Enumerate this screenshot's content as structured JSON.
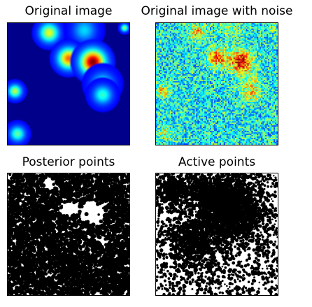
{
  "chart_data": [
    {
      "type": "heatmap",
      "title": "Original image",
      "colormap": "jet",
      "background_color": "#00008b",
      "grid": false,
      "axes_ticks": false,
      "sources": [
        {
          "x": 0.34,
          "y": 0.08,
          "amplitude": 0.55,
          "sigma": 0.05
        },
        {
          "x": 0.63,
          "y": 0.06,
          "amplitude": 0.25,
          "sigma": 0.06
        },
        {
          "x": 0.96,
          "y": 0.04,
          "amplitude": 0.45,
          "sigma": 0.02
        },
        {
          "x": 0.5,
          "y": 0.29,
          "amplitude": 0.75,
          "sigma": 0.055
        },
        {
          "x": 0.7,
          "y": 0.32,
          "amplitude": 1.0,
          "sigma": 0.065
        },
        {
          "x": 0.78,
          "y": 0.5,
          "amplitude": 0.3,
          "sigma": 0.06
        },
        {
          "x": 0.78,
          "y": 0.59,
          "amplitude": 0.35,
          "sigma": 0.05
        },
        {
          "x": 0.06,
          "y": 0.56,
          "amplitude": 0.5,
          "sigma": 0.035
        },
        {
          "x": 0.08,
          "y": 0.91,
          "amplitude": 0.4,
          "sigma": 0.04
        }
      ]
    },
    {
      "type": "heatmap",
      "title": "Original image with noise",
      "colormap": "jet",
      "background_color": "#4ec0c8",
      "grid": false,
      "axes_ticks": false
    },
    {
      "type": "scatter",
      "title": "Posterior points",
      "marker_color": "#000000",
      "background_color": "#000000",
      "grid": false,
      "axes_ticks": false
    },
    {
      "type": "scatter",
      "title": "Active points",
      "marker_color": "#000000",
      "background_color": "#ffffff",
      "grid": false,
      "axes_ticks": false
    }
  ]
}
